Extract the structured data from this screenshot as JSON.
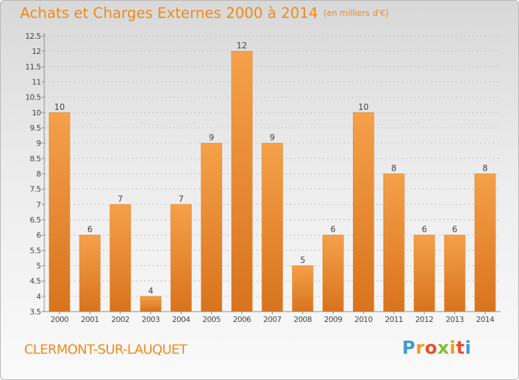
{
  "chart_data": {
    "type": "bar",
    "title": "Achats et Charges Externes 2000 à 2014",
    "unit": "(en milliers d'€)",
    "categories": [
      "2000",
      "2001",
      "2002",
      "2003",
      "2004",
      "2005",
      "2006",
      "2007",
      "2008",
      "2009",
      "2010",
      "2011",
      "2012",
      "2013",
      "2014"
    ],
    "values": [
      10,
      6,
      7,
      4,
      7,
      9,
      12,
      9,
      5,
      6,
      10,
      8,
      6,
      6,
      8
    ],
    "data_labels": [
      "10",
      "6",
      "7",
      "4",
      "7",
      "9",
      "12",
      "9",
      "5",
      "6",
      "10",
      "8",
      "6",
      "6",
      "8"
    ],
    "yticks": [
      "3.5",
      "4",
      "4.5",
      "5",
      "5.5",
      "6",
      "6.5",
      "7",
      "7.5",
      "8",
      "8.5",
      "9",
      "9.5",
      "10",
      "10.5",
      "11",
      "11.5",
      "12",
      "12.5"
    ],
    "ylim": [
      3.5,
      12.5
    ],
    "grid": "horizontal dashed",
    "bar_color": "#f5a04a",
    "bar_dark_color": "#d9731d"
  },
  "location": "CLERMONT-SUR-LAUQUET",
  "logo": {
    "letters": [
      "P",
      "r",
      "o",
      "x",
      "i",
      "t",
      "i"
    ],
    "colors": [
      "#3d9ad6",
      "#f29a1f",
      "#e94f2a",
      "#7dbf3b",
      "#f29a1f",
      "#e94f2a",
      "#3d9ad6"
    ]
  },
  "colors": {
    "accent": "#f08a18",
    "axis": "#8a8a8a",
    "grid": "#c9c9c9"
  }
}
